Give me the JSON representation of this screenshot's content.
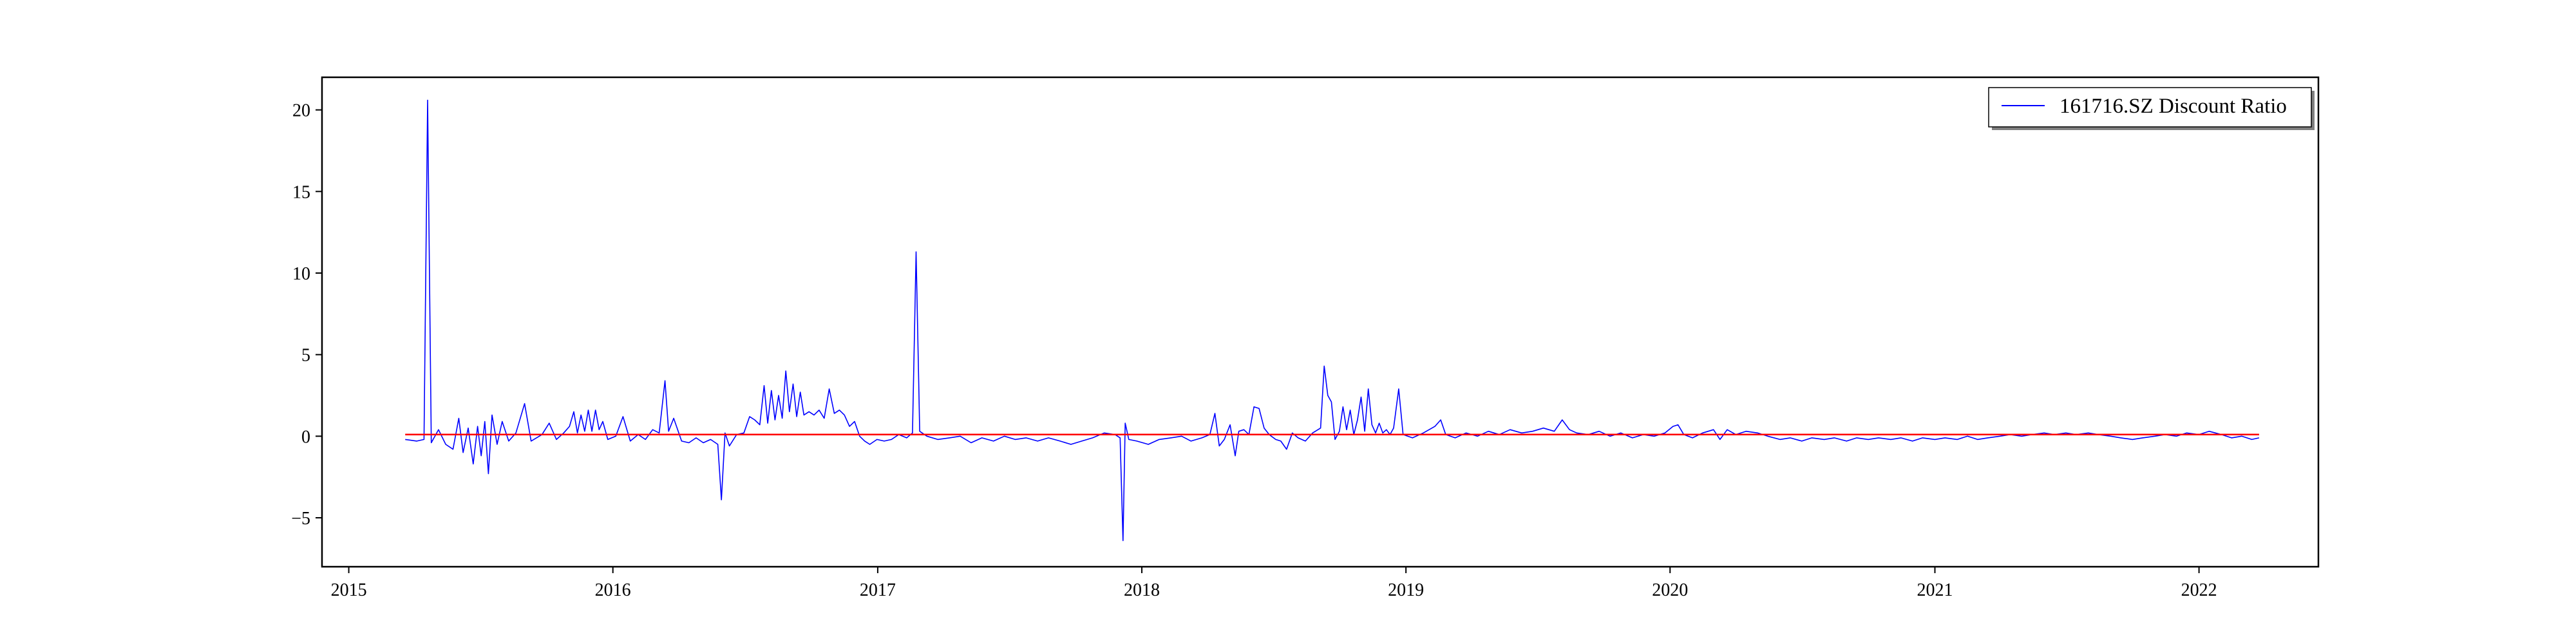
{
  "chart_data": {
    "type": "line",
    "title": "",
    "xlabel": "",
    "ylabel": "",
    "x_axis": {
      "type": "date",
      "xlim": [
        "2014-11-25",
        "2022-06-15"
      ],
      "ticks": [
        {
          "value": "2015-01-01",
          "label": "2015"
        },
        {
          "value": "2016-01-01",
          "label": "2016"
        },
        {
          "value": "2017-01-01",
          "label": "2017"
        },
        {
          "value": "2018-01-01",
          "label": "2018"
        },
        {
          "value": "2019-01-01",
          "label": "2019"
        },
        {
          "value": "2020-01-01",
          "label": "2020"
        },
        {
          "value": "2021-01-01",
          "label": "2021"
        },
        {
          "value": "2022-01-01",
          "label": "2022"
        }
      ]
    },
    "y_axis": {
      "ylim": [
        -8,
        22
      ],
      "ticks": [
        {
          "value": -5,
          "label": "−5"
        },
        {
          "value": 0,
          "label": "0"
        },
        {
          "value": 5,
          "label": "5"
        },
        {
          "value": 10,
          "label": "10"
        },
        {
          "value": 15,
          "label": "15"
        },
        {
          "value": 20,
          "label": "20"
        }
      ]
    },
    "grid": false,
    "legend": {
      "position": "upper right",
      "entries": [
        {
          "label": "161716.SZ Discount Ratio",
          "color": "#0000ff"
        }
      ]
    },
    "series": [
      {
        "name": "161716.SZ Discount Ratio",
        "color": "#0000ff",
        "points": [
          [
            "2015-03-20",
            -0.2
          ],
          [
            "2015-04-05",
            -0.3
          ],
          [
            "2015-04-15",
            -0.2
          ],
          [
            "2015-04-20",
            20.6
          ],
          [
            "2015-04-25",
            -0.4
          ],
          [
            "2015-05-05",
            0.4
          ],
          [
            "2015-05-15",
            -0.5
          ],
          [
            "2015-05-25",
            -0.8
          ],
          [
            "2015-06-02",
            1.1
          ],
          [
            "2015-06-08",
            -1.0
          ],
          [
            "2015-06-15",
            0.5
          ],
          [
            "2015-06-22",
            -1.7
          ],
          [
            "2015-06-28",
            0.6
          ],
          [
            "2015-07-03",
            -1.2
          ],
          [
            "2015-07-08",
            0.9
          ],
          [
            "2015-07-13",
            -2.3
          ],
          [
            "2015-07-18",
            1.3
          ],
          [
            "2015-07-25",
            -0.5
          ],
          [
            "2015-08-01",
            0.9
          ],
          [
            "2015-08-10",
            -0.3
          ],
          [
            "2015-08-20",
            0.2
          ],
          [
            "2015-09-01",
            2.0
          ],
          [
            "2015-09-10",
            -0.3
          ],
          [
            "2015-09-25",
            0.1
          ],
          [
            "2015-10-05",
            0.8
          ],
          [
            "2015-10-15",
            -0.2
          ],
          [
            "2015-10-25",
            0.2
          ],
          [
            "2015-11-02",
            0.6
          ],
          [
            "2015-11-08",
            1.5
          ],
          [
            "2015-11-13",
            0.2
          ],
          [
            "2015-11-18",
            1.3
          ],
          [
            "2015-11-23",
            0.3
          ],
          [
            "2015-11-28",
            1.6
          ],
          [
            "2015-12-03",
            0.3
          ],
          [
            "2015-12-08",
            1.6
          ],
          [
            "2015-12-13",
            0.4
          ],
          [
            "2015-12-18",
            0.9
          ],
          [
            "2015-12-25",
            -0.2
          ],
          [
            "2016-01-05",
            0.0
          ],
          [
            "2016-01-15",
            1.2
          ],
          [
            "2016-01-25",
            -0.3
          ],
          [
            "2016-02-05",
            0.1
          ],
          [
            "2016-02-15",
            -0.2
          ],
          [
            "2016-02-25",
            0.4
          ],
          [
            "2016-03-05",
            0.2
          ],
          [
            "2016-03-13",
            3.4
          ],
          [
            "2016-03-18",
            0.3
          ],
          [
            "2016-03-25",
            1.1
          ],
          [
            "2016-04-05",
            -0.3
          ],
          [
            "2016-04-15",
            -0.4
          ],
          [
            "2016-04-25",
            -0.1
          ],
          [
            "2016-05-05",
            -0.4
          ],
          [
            "2016-05-15",
            -0.2
          ],
          [
            "2016-05-25",
            -0.5
          ],
          [
            "2016-05-30",
            -3.9
          ],
          [
            "2016-06-04",
            0.2
          ],
          [
            "2016-06-10",
            -0.6
          ],
          [
            "2016-06-20",
            0.1
          ],
          [
            "2016-06-30",
            0.2
          ],
          [
            "2016-07-08",
            1.2
          ],
          [
            "2016-07-15",
            1.0
          ],
          [
            "2016-07-22",
            0.7
          ],
          [
            "2016-07-28",
            3.1
          ],
          [
            "2016-08-02",
            0.8
          ],
          [
            "2016-08-07",
            2.8
          ],
          [
            "2016-08-12",
            1.0
          ],
          [
            "2016-08-17",
            2.5
          ],
          [
            "2016-08-22",
            1.1
          ],
          [
            "2016-08-27",
            4.0
          ],
          [
            "2016-09-01",
            1.5
          ],
          [
            "2016-09-06",
            3.2
          ],
          [
            "2016-09-11",
            1.2
          ],
          [
            "2016-09-16",
            2.7
          ],
          [
            "2016-09-21",
            1.3
          ],
          [
            "2016-09-28",
            1.5
          ],
          [
            "2016-10-05",
            1.3
          ],
          [
            "2016-10-12",
            1.6
          ],
          [
            "2016-10-19",
            1.1
          ],
          [
            "2016-10-26",
            2.9
          ],
          [
            "2016-11-02",
            1.4
          ],
          [
            "2016-11-09",
            1.6
          ],
          [
            "2016-11-16",
            1.3
          ],
          [
            "2016-11-23",
            0.6
          ],
          [
            "2016-11-30",
            0.9
          ],
          [
            "2016-12-07",
            0.0
          ],
          [
            "2016-12-14",
            -0.3
          ],
          [
            "2016-12-21",
            -0.5
          ],
          [
            "2016-12-31",
            -0.2
          ],
          [
            "2017-01-10",
            -0.3
          ],
          [
            "2017-01-20",
            -0.2
          ],
          [
            "2017-01-30",
            0.1
          ],
          [
            "2017-02-10",
            -0.1
          ],
          [
            "2017-02-18",
            0.2
          ],
          [
            "2017-02-23",
            11.3
          ],
          [
            "2017-02-28",
            0.3
          ],
          [
            "2017-03-10",
            0.0
          ],
          [
            "2017-03-25",
            -0.2
          ],
          [
            "2017-04-10",
            -0.1
          ],
          [
            "2017-04-25",
            0.0
          ],
          [
            "2017-05-10",
            -0.4
          ],
          [
            "2017-05-25",
            -0.1
          ],
          [
            "2017-06-10",
            -0.3
          ],
          [
            "2017-06-25",
            0.0
          ],
          [
            "2017-07-10",
            -0.2
          ],
          [
            "2017-07-25",
            -0.1
          ],
          [
            "2017-08-10",
            -0.3
          ],
          [
            "2017-08-25",
            -0.1
          ],
          [
            "2017-09-10",
            -0.3
          ],
          [
            "2017-09-25",
            -0.5
          ],
          [
            "2017-10-10",
            -0.3
          ],
          [
            "2017-10-25",
            -0.1
          ],
          [
            "2017-11-10",
            0.2
          ],
          [
            "2017-11-25",
            0.1
          ],
          [
            "2017-12-02",
            -0.1
          ],
          [
            "2017-12-06",
            -6.4
          ],
          [
            "2017-12-09",
            0.8
          ],
          [
            "2017-12-14",
            -0.2
          ],
          [
            "2017-12-25",
            -0.3
          ],
          [
            "2018-01-10",
            -0.5
          ],
          [
            "2018-01-25",
            -0.2
          ],
          [
            "2018-02-10",
            -0.1
          ],
          [
            "2018-02-25",
            0.0
          ],
          [
            "2018-03-10",
            -0.3
          ],
          [
            "2018-03-25",
            -0.1
          ],
          [
            "2018-04-05",
            0.1
          ],
          [
            "2018-04-12",
            1.4
          ],
          [
            "2018-04-18",
            -0.6
          ],
          [
            "2018-04-25",
            -0.2
          ],
          [
            "2018-05-03",
            0.7
          ],
          [
            "2018-05-10",
            -1.2
          ],
          [
            "2018-05-15",
            0.3
          ],
          [
            "2018-05-22",
            0.4
          ],
          [
            "2018-05-29",
            0.1
          ],
          [
            "2018-06-05",
            1.8
          ],
          [
            "2018-06-12",
            1.7
          ],
          [
            "2018-06-19",
            0.5
          ],
          [
            "2018-06-26",
            0.1
          ],
          [
            "2018-07-05",
            -0.2
          ],
          [
            "2018-07-12",
            -0.3
          ],
          [
            "2018-07-20",
            -0.8
          ],
          [
            "2018-07-28",
            0.2
          ],
          [
            "2018-08-05",
            -0.1
          ],
          [
            "2018-08-15",
            -0.3
          ],
          [
            "2018-08-25",
            0.2
          ],
          [
            "2018-09-05",
            0.5
          ],
          [
            "2018-09-10",
            4.3
          ],
          [
            "2018-09-15",
            2.5
          ],
          [
            "2018-09-20",
            2.1
          ],
          [
            "2018-09-25",
            -0.2
          ],
          [
            "2018-10-01",
            0.3
          ],
          [
            "2018-10-06",
            1.8
          ],
          [
            "2018-10-11",
            0.4
          ],
          [
            "2018-10-16",
            1.6
          ],
          [
            "2018-10-21",
            0.1
          ],
          [
            "2018-10-26",
            1.0
          ],
          [
            "2018-10-31",
            2.4
          ],
          [
            "2018-11-05",
            0.3
          ],
          [
            "2018-11-10",
            2.9
          ],
          [
            "2018-11-15",
            0.7
          ],
          [
            "2018-11-20",
            0.2
          ],
          [
            "2018-11-25",
            0.8
          ],
          [
            "2018-11-30",
            0.2
          ],
          [
            "2018-12-05",
            0.4
          ],
          [
            "2018-12-10",
            0.1
          ],
          [
            "2018-12-15",
            0.5
          ],
          [
            "2018-12-22",
            2.9
          ],
          [
            "2018-12-28",
            0.1
          ],
          [
            "2019-01-10",
            -0.1
          ],
          [
            "2019-01-25",
            0.2
          ],
          [
            "2019-02-10",
            0.6
          ],
          [
            "2019-02-18",
            1.0
          ],
          [
            "2019-02-25",
            0.1
          ],
          [
            "2019-03-10",
            -0.1
          ],
          [
            "2019-03-25",
            0.2
          ],
          [
            "2019-04-10",
            0.0
          ],
          [
            "2019-04-25",
            0.3
          ],
          [
            "2019-05-10",
            0.1
          ],
          [
            "2019-05-25",
            0.4
          ],
          [
            "2019-06-10",
            0.2
          ],
          [
            "2019-06-25",
            0.3
          ],
          [
            "2019-07-10",
            0.5
          ],
          [
            "2019-07-25",
            0.3
          ],
          [
            "2019-08-05",
            1.0
          ],
          [
            "2019-08-15",
            0.4
          ],
          [
            "2019-08-25",
            0.2
          ],
          [
            "2019-09-10",
            0.1
          ],
          [
            "2019-09-25",
            0.3
          ],
          [
            "2019-10-10",
            0.0
          ],
          [
            "2019-10-25",
            0.2
          ],
          [
            "2019-11-10",
            -0.1
          ],
          [
            "2019-11-25",
            0.1
          ],
          [
            "2019-12-10",
            0.0
          ],
          [
            "2019-12-25",
            0.2
          ],
          [
            "2020-01-05",
            0.6
          ],
          [
            "2020-01-12",
            0.7
          ],
          [
            "2020-01-20",
            0.1
          ],
          [
            "2020-02-01",
            -0.1
          ],
          [
            "2020-02-15",
            0.2
          ],
          [
            "2020-03-01",
            0.4
          ],
          [
            "2020-03-10",
            -0.2
          ],
          [
            "2020-03-20",
            0.4
          ],
          [
            "2020-04-01",
            0.1
          ],
          [
            "2020-04-15",
            0.3
          ],
          [
            "2020-05-01",
            0.2
          ],
          [
            "2020-05-15",
            0.0
          ],
          [
            "2020-06-01",
            -0.2
          ],
          [
            "2020-06-15",
            -0.1
          ],
          [
            "2020-07-01",
            -0.3
          ],
          [
            "2020-07-15",
            -0.1
          ],
          [
            "2020-08-01",
            -0.2
          ],
          [
            "2020-08-15",
            -0.1
          ],
          [
            "2020-09-01",
            -0.3
          ],
          [
            "2020-09-15",
            -0.1
          ],
          [
            "2020-10-01",
            -0.2
          ],
          [
            "2020-10-15",
            -0.1
          ],
          [
            "2020-11-01",
            -0.2
          ],
          [
            "2020-11-15",
            -0.1
          ],
          [
            "2020-12-01",
            -0.3
          ],
          [
            "2020-12-15",
            -0.1
          ],
          [
            "2021-01-01",
            -0.2
          ],
          [
            "2021-01-15",
            -0.1
          ],
          [
            "2021-02-01",
            -0.2
          ],
          [
            "2021-02-15",
            0.0
          ],
          [
            "2021-03-01",
            -0.2
          ],
          [
            "2021-03-15",
            -0.1
          ],
          [
            "2021-04-01",
            0.0
          ],
          [
            "2021-04-15",
            0.1
          ],
          [
            "2021-05-01",
            0.0
          ],
          [
            "2021-05-15",
            0.1
          ],
          [
            "2021-06-01",
            0.2
          ],
          [
            "2021-06-15",
            0.1
          ],
          [
            "2021-07-01",
            0.2
          ],
          [
            "2021-07-15",
            0.1
          ],
          [
            "2021-08-01",
            0.2
          ],
          [
            "2021-08-15",
            0.1
          ],
          [
            "2021-09-01",
            0.0
          ],
          [
            "2021-09-15",
            -0.1
          ],
          [
            "2021-10-01",
            -0.2
          ],
          [
            "2021-10-15",
            -0.1
          ],
          [
            "2021-11-01",
            0.0
          ],
          [
            "2021-11-15",
            0.1
          ],
          [
            "2021-12-01",
            0.0
          ],
          [
            "2021-12-15",
            0.2
          ],
          [
            "2022-01-01",
            0.1
          ],
          [
            "2022-01-15",
            0.3
          ],
          [
            "2022-02-01",
            0.1
          ],
          [
            "2022-02-15",
            -0.1
          ],
          [
            "2022-03-01",
            0.0
          ],
          [
            "2022-03-15",
            -0.2
          ],
          [
            "2022-03-25",
            -0.1
          ]
        ]
      },
      {
        "name": "",
        "color": "#ff0000",
        "points": [
          [
            "2015-03-20",
            0.1
          ],
          [
            "2022-03-25",
            0.1
          ]
        ]
      }
    ]
  }
}
